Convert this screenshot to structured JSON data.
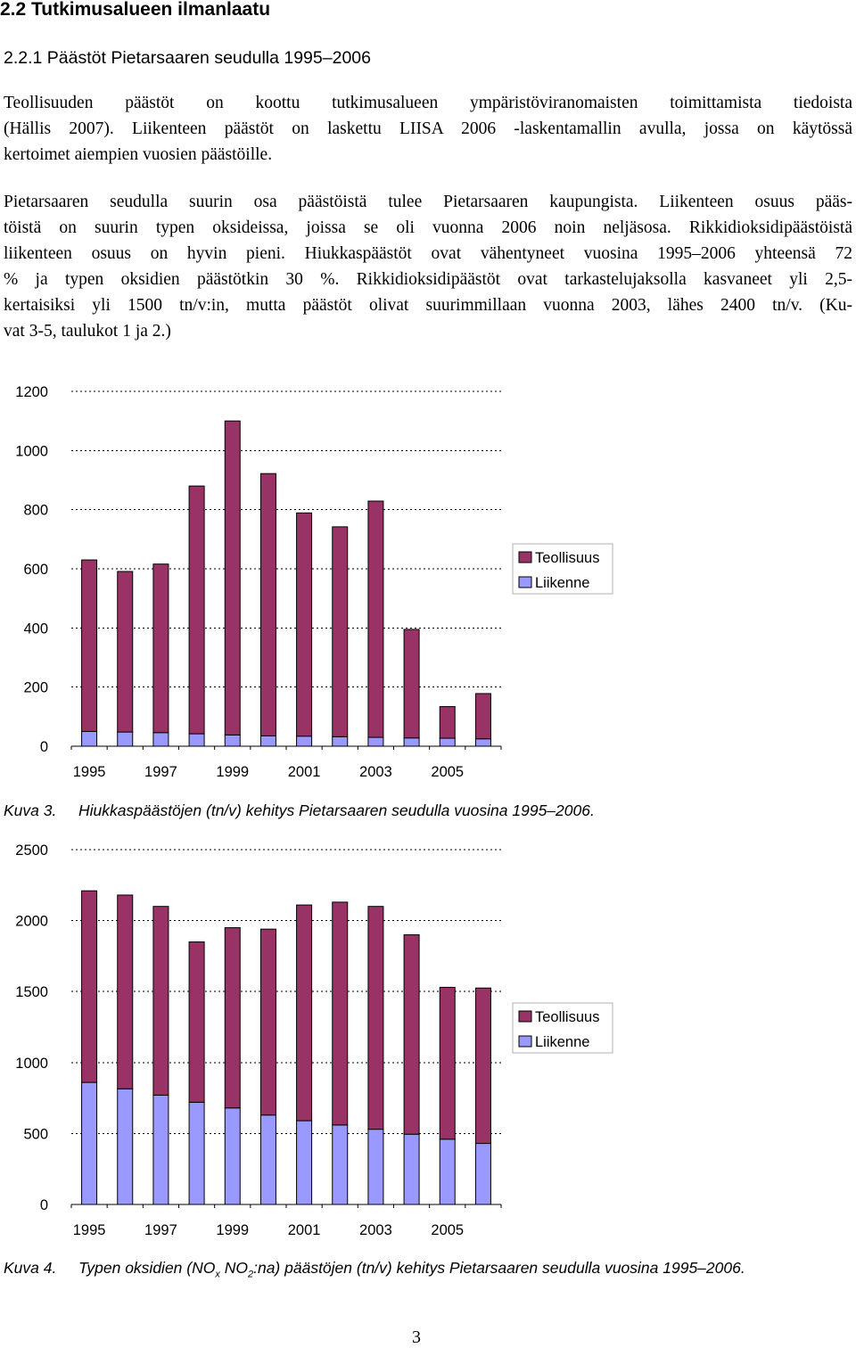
{
  "section_heading": "2.2 Tutkimusalueen ilmanlaatu",
  "subsection_heading": "2.2.1 Päästöt Pietarsaaren seudulla 1995–2006",
  "paragraph1": [
    "Teollisuuden päästöt on koottu tutkimusalueen ympäristöviranomaisten toimittamista tiedoista",
    "(Hällis 2007). Liikenteen päästöt on laskettu LIISA 2006 -laskentamallin avulla, jossa on käytössä",
    "kertoimet aiempien vuosien päästöille."
  ],
  "paragraph2": [
    "Pietarsaaren seudulla suurin osa päästöistä tulee Pietarsaaren kaupungista. Liikenteen osuus pääs-",
    "töistä on suurin typen oksideissa, joissa se oli vuonna 2006 noin neljäsosa. Rikkidioksidipäästöistä",
    "liikenteen osuus on hyvin pieni. Hiukkaspäästöt ovat vähentyneet vuosina 1995–2006 yhteensä 72",
    "% ja typen oksidien päästötkin 30 %. Rikkidioksidipäästöt ovat tarkastelujaksolla kasvaneet yli 2,5-",
    "kertaisiksi yli 1500 tn/v:in, mutta päästöt olivat suurimmillaan vuonna 2003, lähes 2400 tn/v. (Ku-",
    "vat 3-5, taulukot 1 ja 2.)"
  ],
  "colors": {
    "teollisuus": "#993366",
    "liikenne": "#9999ff"
  },
  "chart_data": [
    {
      "type": "bar",
      "stacked": true,
      "title": "",
      "xlabel": "",
      "ylabel": "",
      "categories": [
        "1995",
        "1996",
        "1997",
        "1998",
        "1999",
        "2000",
        "2001",
        "2002",
        "2003",
        "2004",
        "2005",
        "2006"
      ],
      "x_tick_labels": [
        "1995",
        "1997",
        "1999",
        "2001",
        "2003",
        "2005"
      ],
      "y_ticks": [
        "0",
        "200",
        "400",
        "600",
        "800",
        "1000",
        "1200"
      ],
      "ylim": [
        0,
        1200
      ],
      "grid": "dashed horizontal",
      "legend_position": "right",
      "series": [
        {
          "name": "Liikenne",
          "values": [
            50,
            48,
            46,
            42,
            38,
            35,
            34,
            32,
            30,
            28,
            27,
            25
          ]
        },
        {
          "name": "Teollisuus",
          "values": [
            580,
            543,
            570,
            838,
            1062,
            887,
            755,
            710,
            799,
            367,
            107,
            153
          ]
        }
      ],
      "caption_label": "Kuva 3.",
      "caption_text": "Hiukkaspäästöjen (tn/v) kehitys Pietarsaaren seudulla vuosina 1995–2006."
    },
    {
      "type": "bar",
      "stacked": true,
      "title": "",
      "xlabel": "",
      "ylabel": "",
      "categories": [
        "1995",
        "1996",
        "1997",
        "1998",
        "1999",
        "2000",
        "2001",
        "2002",
        "2003",
        "2004",
        "2005",
        "2006"
      ],
      "x_tick_labels": [
        "1995",
        "1997",
        "1999",
        "2001",
        "2003",
        "2005"
      ],
      "y_ticks": [
        "0",
        "500",
        "1000",
        "1500",
        "2000",
        "2500"
      ],
      "ylim": [
        0,
        2500
      ],
      "grid": "dashed horizontal",
      "legend_position": "right",
      "series": [
        {
          "name": "Liikenne",
          "values": [
            860,
            815,
            770,
            720,
            680,
            630,
            590,
            560,
            530,
            495,
            460,
            430
          ]
        },
        {
          "name": "Teollisuus",
          "values": [
            1350,
            1365,
            1330,
            1130,
            1270,
            1310,
            1520,
            1570,
            1570,
            1405,
            1070,
            1095
          ]
        }
      ],
      "caption_label": "Kuva 4.",
      "caption_text": "Typen oksidien (NO",
      "caption_sub_x": "x",
      "caption_mid": " NO",
      "caption_sub_2": "2",
      "caption_end": ":na) päästöjen (tn/v) kehitys Pietarsaaren seudulla vuosina 1995–2006."
    }
  ],
  "page_number": "3"
}
